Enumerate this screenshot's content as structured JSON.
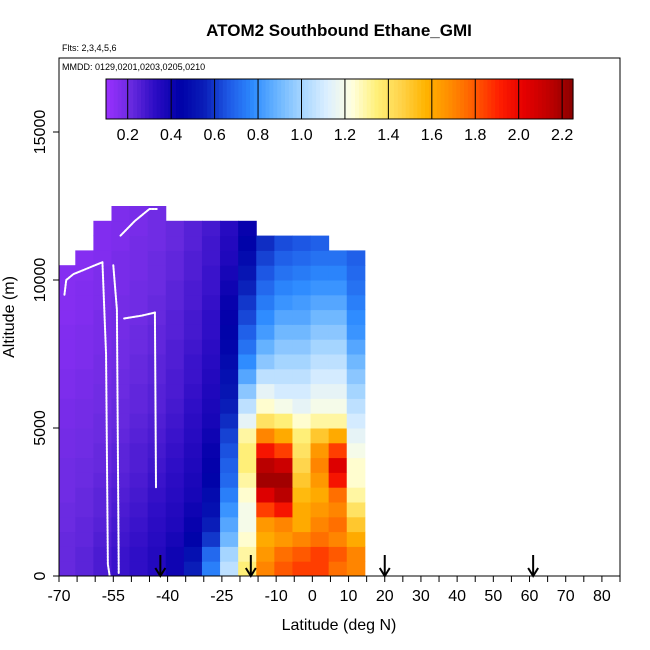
{
  "chart_data": {
    "type": "heatmap",
    "title": "ATOM2 Southbound Ethane_GMI",
    "flights_label": "Flts: 2,3,4,5,6",
    "dates_label": "MMDD: 0129,0201,0203,0205,0210",
    "xlabel": "Latitude (deg N)",
    "ylabel": "Altitude (m)",
    "xlim": [
      -70,
      85
    ],
    "ylim": [
      0,
      17500
    ],
    "x_ticks": [
      -70,
      -55,
      -40,
      -25,
      -10,
      0,
      10,
      20,
      30,
      40,
      50,
      60,
      70,
      80
    ],
    "x_tick_labels": [
      "-70",
      "-55",
      "-40",
      "-25",
      "-10",
      "0",
      "10",
      "20",
      "30",
      "40",
      "50",
      "60",
      "70",
      "80"
    ],
    "x_minor_ticks": [
      -65,
      -60,
      -50,
      -45,
      -35,
      -30,
      -20,
      -15,
      -5,
      5,
      15,
      25,
      35,
      45,
      55,
      65,
      75,
      85
    ],
    "y_ticks": [
      0,
      5000,
      10000,
      15000
    ],
    "y_tick_labels": [
      "0",
      "5000",
      "10000",
      "15000"
    ],
    "colorbar": {
      "min": 0.1,
      "max": 2.25,
      "ticks": [
        0.2,
        0.4,
        0.6,
        0.8,
        1.0,
        1.2,
        1.4,
        1.6,
        1.8,
        2.0,
        2.2
      ],
      "tick_labels": [
        "0.2",
        "0.4",
        "0.6",
        "0.8",
        "1.0",
        "1.2",
        "1.4",
        "1.6",
        "1.8",
        "2.0",
        "2.2"
      ],
      "colors": [
        "#9b30ff",
        "#6a2be0",
        "#2c0cc4",
        "#0000a8",
        "#0a1eb8",
        "#1e5ae6",
        "#2e8cff",
        "#6cb6ff",
        "#a8d6ff",
        "#dcefff",
        "#ffffe0",
        "#fff07a",
        "#ffd34a",
        "#ffb400",
        "#ff8c00",
        "#ff5a00",
        "#ff1e00",
        "#e60000",
        "#c00000",
        "#8b0000"
      ]
    },
    "sampling_markers": [
      -42,
      -17,
      20,
      61
    ],
    "field_rows": [
      {
        "alt": 250,
        "values": [
          0.22,
          0.24,
          0.27,
          0.3,
          0.32,
          0.35,
          0.4,
          0.55,
          0.75,
          1.05,
          1.35,
          1.7,
          1.8,
          1.85,
          1.85,
          1.75,
          1.7
        ]
      },
      {
        "alt": 750,
        "values": [
          0.22,
          0.24,
          0.27,
          0.3,
          0.32,
          0.35,
          0.4,
          0.5,
          0.7,
          1.0,
          1.3,
          1.65,
          1.75,
          1.8,
          1.85,
          1.8,
          1.7
        ]
      },
      {
        "alt": 1250,
        "values": [
          0.22,
          0.23,
          0.26,
          0.29,
          0.31,
          0.34,
          0.38,
          0.45,
          0.6,
          0.9,
          1.25,
          1.6,
          1.65,
          1.7,
          1.75,
          1.7,
          1.6
        ]
      },
      {
        "alt": 1750,
        "values": [
          0.21,
          0.23,
          0.25,
          0.28,
          0.3,
          0.33,
          0.36,
          0.42,
          0.55,
          0.85,
          1.2,
          1.65,
          1.7,
          1.6,
          1.7,
          1.75,
          1.5
        ]
      },
      {
        "alt": 2250,
        "values": [
          0.21,
          0.22,
          0.24,
          0.27,
          0.29,
          0.32,
          0.35,
          0.4,
          0.5,
          0.8,
          1.2,
          1.85,
          1.95,
          1.6,
          1.65,
          1.7,
          1.4
        ]
      },
      {
        "alt": 2750,
        "values": [
          0.2,
          0.22,
          0.24,
          0.26,
          0.28,
          0.31,
          0.34,
          0.38,
          0.48,
          0.75,
          1.25,
          2.05,
          2.15,
          1.55,
          1.6,
          1.75,
          1.3
        ]
      },
      {
        "alt": 3250,
        "values": [
          0.2,
          0.21,
          0.23,
          0.25,
          0.27,
          0.3,
          0.33,
          0.37,
          0.45,
          0.7,
          1.3,
          2.2,
          2.2,
          1.5,
          1.65,
          1.95,
          1.25
        ]
      },
      {
        "alt": 3750,
        "values": [
          0.2,
          0.21,
          0.22,
          0.24,
          0.26,
          0.29,
          0.32,
          0.36,
          0.43,
          0.68,
          1.35,
          2.15,
          2.1,
          1.45,
          1.7,
          2.05,
          1.25
        ]
      },
      {
        "alt": 4250,
        "values": [
          0.19,
          0.2,
          0.22,
          0.24,
          0.26,
          0.28,
          0.31,
          0.35,
          0.42,
          0.65,
          1.35,
          1.95,
          1.85,
          1.4,
          1.65,
          1.85,
          1.2
        ]
      },
      {
        "alt": 4750,
        "values": [
          0.19,
          0.2,
          0.21,
          0.23,
          0.25,
          0.27,
          0.3,
          0.34,
          0.4,
          0.62,
          1.3,
          1.7,
          1.6,
          1.35,
          1.5,
          1.6,
          1.15
        ]
      },
      {
        "alt": 5250,
        "values": [
          0.18,
          0.19,
          0.21,
          0.22,
          0.24,
          0.26,
          0.29,
          0.33,
          0.38,
          0.58,
          1.15,
          1.4,
          1.35,
          1.25,
          1.3,
          1.3,
          1.1
        ]
      },
      {
        "alt": 5750,
        "values": [
          0.18,
          0.19,
          0.2,
          0.22,
          0.23,
          0.25,
          0.28,
          0.32,
          0.37,
          0.55,
          1.05,
          1.25,
          1.2,
          1.15,
          1.2,
          1.2,
          1.05
        ]
      },
      {
        "alt": 6250,
        "values": [
          0.17,
          0.18,
          0.2,
          0.21,
          0.23,
          0.25,
          0.27,
          0.31,
          0.36,
          0.52,
          0.95,
          1.15,
          1.1,
          1.1,
          1.15,
          1.15,
          1.0
        ]
      },
      {
        "alt": 6750,
        "values": [
          0.17,
          0.18,
          0.19,
          0.21,
          0.22,
          0.24,
          0.27,
          0.3,
          0.35,
          0.5,
          0.85,
          1.05,
          1.05,
          1.05,
          1.1,
          1.1,
          0.95
        ]
      },
      {
        "alt": 7250,
        "values": [
          0.16,
          0.17,
          0.19,
          0.2,
          0.22,
          0.24,
          0.26,
          0.3,
          0.34,
          0.48,
          0.78,
          0.95,
          1.0,
          1.0,
          1.05,
          1.05,
          0.9
        ]
      },
      {
        "alt": 7750,
        "values": [
          0.16,
          0.17,
          0.18,
          0.2,
          0.21,
          0.23,
          0.26,
          0.29,
          0.33,
          0.46,
          0.72,
          0.88,
          0.95,
          0.95,
          1.0,
          1.0,
          0.85
        ]
      },
      {
        "alt": 8250,
        "values": [
          0.16,
          0.17,
          0.18,
          0.19,
          0.21,
          0.23,
          0.25,
          0.28,
          0.32,
          0.45,
          0.68,
          0.82,
          0.9,
          0.9,
          0.95,
          0.95,
          0.8
        ]
      },
      {
        "alt": 8750,
        "values": [
          0.15,
          0.16,
          0.18,
          0.19,
          0.2,
          0.22,
          0.25,
          0.28,
          0.32,
          0.43,
          0.63,
          0.78,
          0.85,
          0.85,
          0.9,
          0.9,
          0.78
        ]
      },
      {
        "alt": 9250,
        "values": [
          0.15,
          0.16,
          0.17,
          0.19,
          0.2,
          0.22,
          0.24,
          0.27,
          0.31,
          0.42,
          0.6,
          0.74,
          0.8,
          0.82,
          0.85,
          0.85,
          0.75
        ]
      },
      {
        "alt": 9750,
        "values": [
          0.15,
          0.16,
          0.17,
          0.18,
          0.2,
          0.21,
          0.24,
          0.27,
          0.3,
          0.4,
          0.56,
          0.7,
          0.76,
          0.78,
          0.8,
          0.8,
          0.72
        ]
      },
      {
        "alt": 10250,
        "values": [
          0.15,
          0.15,
          0.17,
          0.18,
          0.19,
          0.21,
          0.23,
          0.26,
          0.3,
          0.38,
          0.52,
          0.66,
          0.72,
          0.74,
          0.76,
          0.76,
          0.7
        ]
      },
      {
        "alt": 10750,
        "values": [
          null,
          0.15,
          0.16,
          0.18,
          0.19,
          0.21,
          0.23,
          0.26,
          0.29,
          0.36,
          0.48,
          0.62,
          0.68,
          0.7,
          0.72,
          0.72,
          0.68
        ]
      },
      {
        "alt": 11250,
        "values": [
          null,
          null,
          0.16,
          0.17,
          0.19,
          0.2,
          0.22,
          0.25,
          0.29,
          0.35,
          0.45,
          0.58,
          0.64,
          0.66,
          0.68,
          null,
          null
        ]
      },
      {
        "alt": 11750,
        "values": [
          null,
          null,
          0.16,
          0.17,
          0.18,
          0.2,
          0.22,
          0.25,
          0.28,
          0.34,
          0.42,
          null,
          null,
          null,
          null,
          null,
          null
        ]
      },
      {
        "alt": 12250,
        "values": [
          null,
          null,
          null,
          0.17,
          0.18,
          0.2,
          null,
          null,
          null,
          null,
          null,
          null,
          null,
          null,
          null,
          null,
          null
        ]
      }
    ],
    "field_columns": [
      -68,
      -63,
      -58,
      -53,
      -48,
      -43,
      -38,
      -33,
      -28,
      -23,
      -18,
      -13,
      -8,
      -3,
      2,
      7,
      12
    ],
    "flight_profiles": [
      {
        "lat": [
          -68.5,
          -68,
          -66,
          -62,
          -58
        ],
        "alt": [
          9500,
          10000,
          10200,
          10400,
          10600
        ]
      },
      {
        "lat": [
          -58,
          -57,
          -56.5,
          -56
        ],
        "alt": [
          10600,
          7500,
          400,
          0
        ]
      },
      {
        "lat": [
          -55,
          -54,
          -53.5
        ],
        "alt": [
          10500,
          9000,
          100
        ]
      },
      {
        "lat": [
          -53,
          -49,
          -45,
          -43
        ],
        "alt": [
          11500,
          12000,
          12400,
          12400
        ]
      },
      {
        "lat": [
          -52,
          -47,
          -43.5
        ],
        "alt": [
          8700,
          8800,
          8900
        ]
      },
      {
        "lat": [
          -43.5,
          -43.2
        ],
        "alt": [
          8900,
          3000
        ]
      }
    ]
  }
}
